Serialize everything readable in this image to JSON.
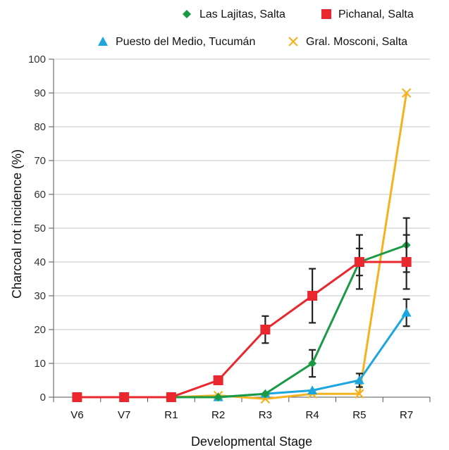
{
  "chart_data": {
    "type": "line",
    "xlabel": "Developmental Stage",
    "ylabel": "Charcoal rot incidence (%)",
    "ylim": [
      0,
      100
    ],
    "yticks": [
      0,
      10,
      20,
      30,
      40,
      50,
      60,
      70,
      80,
      90,
      100
    ],
    "categories": [
      "V6",
      "V7",
      "R1",
      "R2",
      "R3",
      "R4",
      "R5",
      "R7"
    ],
    "grid": "horizontal",
    "legend_position": "top",
    "series": [
      {
        "name": "Las Lajitas, Salta",
        "color": "#1a9a45",
        "marker": "diamond",
        "values": [
          0,
          0,
          0,
          0,
          1,
          10,
          40,
          45
        ],
        "error": [
          0,
          0,
          0,
          0,
          0,
          4,
          4,
          8
        ]
      },
      {
        "name": "Pichanal, Salta",
        "color": "#e8282e",
        "marker": "square",
        "values": [
          0,
          0,
          0,
          5,
          20,
          30,
          40,
          40
        ],
        "error": [
          0,
          0,
          0,
          1,
          4,
          8,
          8,
          8
        ]
      },
      {
        "name": "Puesto del Medio, Tucumán",
        "color": "#1ca6e0",
        "marker": "triangle",
        "values": [
          0,
          0,
          0,
          0,
          1,
          2,
          5,
          25
        ],
        "error": [
          0,
          0,
          0,
          0,
          0,
          0,
          2,
          4
        ]
      },
      {
        "name": "Gral. Mosconi, Salta",
        "color": "#f5b21e",
        "marker": "x",
        "values": [
          0,
          0,
          0,
          0.5,
          -0.5,
          1,
          1,
          90
        ],
        "error": [
          0,
          0,
          0,
          0,
          0,
          0,
          0,
          0
        ]
      }
    ]
  }
}
